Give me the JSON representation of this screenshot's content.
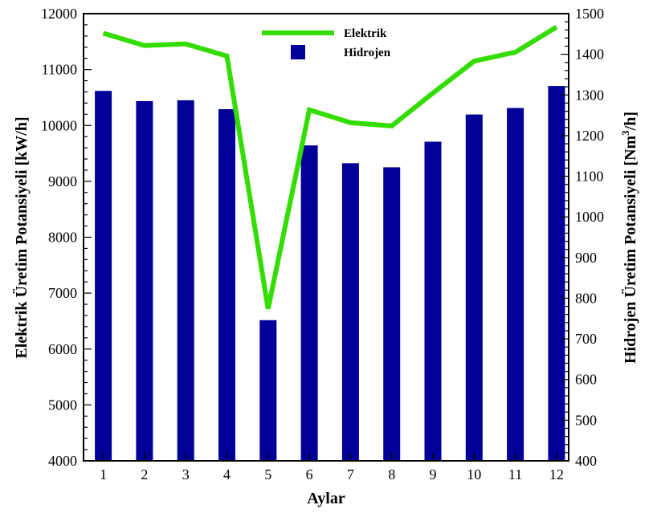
{
  "chart_data": {
    "type": "bar",
    "categories": [
      "1",
      "2",
      "3",
      "4",
      "5",
      "6",
      "7",
      "8",
      "9",
      "10",
      "11",
      "12"
    ],
    "series": [
      {
        "name": "Hidrojen",
        "kind": "bar",
        "axis": "right",
        "color": "#000099",
        "values": [
          1310,
          1285,
          1287,
          1265,
          746,
          1176,
          1132,
          1122,
          1185,
          1252,
          1268,
          1322
        ]
      },
      {
        "name": "Elektrik",
        "kind": "line",
        "axis": "left",
        "color": "#33dd00",
        "values": [
          11650,
          11430,
          11460,
          11240,
          6720,
          10280,
          10050,
          9990,
          10580,
          11150,
          11310,
          11760
        ]
      }
    ],
    "xlabel": "Aylar",
    "ylabel": "Elektrik Üretim Potansiyeli [kW/h]",
    "ylabel_right": {
      "prefix": "Hidrojen Üretim Potansiyeli [Nm",
      "superscript": "3",
      "suffix": "/h]"
    },
    "ylim": [
      4000,
      12000
    ],
    "ylim_right": [
      400,
      1500
    ],
    "yticks": [
      "4000",
      "5000",
      "6000",
      "7000",
      "8000",
      "9000",
      "10000",
      "11000",
      "12000"
    ],
    "yticks_right": [
      "400",
      "500",
      "600",
      "700",
      "800",
      "900",
      "1000",
      "1100",
      "1200",
      "1300",
      "1400",
      "1500"
    ],
    "grid": false,
    "legend": "top-center"
  }
}
